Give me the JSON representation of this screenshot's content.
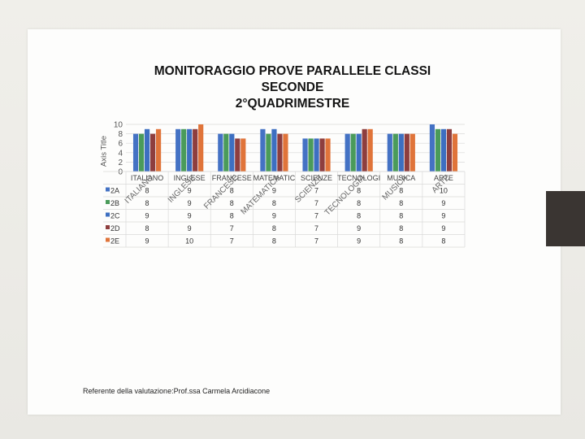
{
  "slide": {
    "title_lines": [
      "MONITORAGGIO PROVE PARALLELE CLASSI",
      "SECONDE",
      "2°QUADRIMESTRE"
    ],
    "axis_title": "Axis Title",
    "credit": "Referente della valutazione:Prof.ssa Carmela Arcidiacone"
  },
  "chart_data": {
    "type": "bar",
    "title": "MONITORAGGIO PROVE PARALLELE CLASSI SECONDE 2°QUADRIMESTRE",
    "ylabel": "Axis Title",
    "xlabel": "",
    "ylim": [
      0,
      10
    ],
    "yticks": [
      0,
      2,
      4,
      6,
      8,
      10
    ],
    "grid": true,
    "legend": "data table",
    "categories": [
      "ITALIANO",
      "INGLESE",
      "FRANCESE",
      "MATEMATIC",
      "SCIENZE",
      "TECNOLOGI",
      "MUSICA",
      "ARTE"
    ],
    "tilted_labels": [
      "ITALIANO",
      "INGLESE",
      "FRANCESE",
      "MATEMATICA",
      "SCIENZE",
      "TECNOLOGIA",
      "MUSICA",
      "ARTE"
    ],
    "series": [
      {
        "name": "2A",
        "color": "#4472c4",
        "values": [
          8,
          9,
          8,
          9,
          7,
          8,
          8,
          10
        ]
      },
      {
        "name": "2B",
        "color": "#4a9b5a",
        "values": [
          8,
          9,
          8,
          8,
          7,
          8,
          8,
          9
        ]
      },
      {
        "name": "2C",
        "color": "#3d6fc1",
        "values": [
          9,
          9,
          8,
          9,
          7,
          8,
          8,
          9
        ]
      },
      {
        "name": "2D",
        "color": "#8e3e3e",
        "values": [
          8,
          9,
          7,
          8,
          7,
          9,
          8,
          9
        ]
      },
      {
        "name": "2E",
        "color": "#e0743a",
        "values": [
          9,
          10,
          7,
          8,
          7,
          9,
          8,
          8
        ]
      }
    ]
  }
}
